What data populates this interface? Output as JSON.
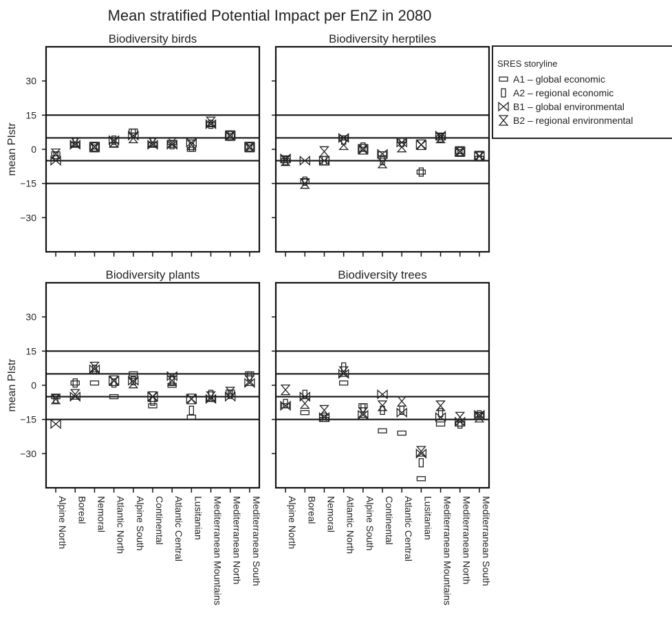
{
  "figure": {
    "title": "Mean stratified Potential Impact per EnZ in 2080"
  },
  "legend": {
    "title": "SRES storyline",
    "entries": [
      {
        "marker": "A1",
        "label": "A1 – global economic"
      },
      {
        "marker": "A2",
        "label": "A2 – regional economic"
      },
      {
        "marker": "B1",
        "label": "B1 – global environmental"
      },
      {
        "marker": "B2",
        "label": "B2 – regional environmental"
      }
    ]
  },
  "chart_data": {
    "type": "scatter",
    "ylabel": "mean  PIstr",
    "ylim": [
      -45,
      45
    ],
    "yticks": [
      -30,
      -15,
      0,
      15,
      30
    ],
    "reference_lines": [
      15,
      5,
      -5,
      -15
    ],
    "categories": [
      "Alpine North",
      "Boreal",
      "Nemoral",
      "Atlantic North",
      "Alpine South",
      "Continental",
      "Atlantic Central",
      "Lusitanian",
      "Mediterranean Mountains",
      "Mediterranean North",
      "Mediterranean South"
    ],
    "series_names": [
      "A1",
      "A2",
      "B1",
      "B2"
    ],
    "panels": [
      {
        "title": "Biodiversity birds",
        "A1": [
          -2,
          2,
          1,
          2,
          8,
          2,
          3,
          0,
          11,
          6,
          1
        ],
        "A2": [
          -3,
          3,
          1,
          4,
          7,
          3,
          2,
          1,
          11,
          6,
          1
        ],
        "B1": [
          -5,
          2,
          1,
          4,
          6,
          2,
          2,
          3,
          11,
          6,
          1
        ],
        "B2": [
          -2,
          3,
          1,
          3,
          5,
          3,
          3,
          2,
          12,
          6,
          1
        ]
      },
      {
        "title": "Biodiversity herptiles",
        "A1": [
          -5,
          -14,
          -6,
          5,
          0,
          -2,
          4,
          -10,
          5,
          -1,
          -4
        ],
        "A2": [
          -5,
          -14,
          -5,
          4,
          1,
          -5,
          3,
          -10,
          5,
          -1,
          -3
        ],
        "B1": [
          -4,
          -5,
          -5,
          5,
          0,
          -2,
          3,
          2,
          6,
          -1,
          -3
        ],
        "B2": [
          -5,
          -15,
          -1,
          2,
          0,
          -6,
          1,
          2,
          5,
          -1,
          -3
        ]
      },
      {
        "title": "Biodiversity plants",
        "A1": [
          -5,
          1,
          1,
          -5,
          5,
          -9,
          0,
          -14,
          -6,
          -3,
          5
        ],
        "A2": [
          -6,
          1,
          7,
          1,
          2,
          -7,
          2,
          -11,
          -4,
          -4,
          4
        ],
        "B1": [
          -17,
          -5,
          7,
          2,
          2,
          -5,
          4,
          -6,
          -6,
          -5,
          1
        ],
        "B2": [
          -6,
          -4,
          8,
          2,
          1,
          -5,
          2,
          -6,
          -5,
          -3,
          2
        ]
      },
      {
        "title": "Biodiversity trees",
        "A1": [
          -9,
          -12,
          -15,
          1,
          -9,
          -20,
          -21,
          -41,
          -17,
          -17,
          -13
        ],
        "A2": [
          -8,
          -4,
          -14,
          8,
          -10,
          -11,
          -11,
          -34,
          -12,
          -17,
          -13
        ],
        "B1": [
          -9,
          -5,
          -14,
          5,
          -13,
          -4,
          -12,
          -30,
          -14,
          -16,
          -13
        ],
        "B2": [
          -2,
          -8,
          -11,
          6,
          -12,
          -9,
          -7,
          -29,
          -9,
          -14,
          -14
        ]
      }
    ]
  }
}
